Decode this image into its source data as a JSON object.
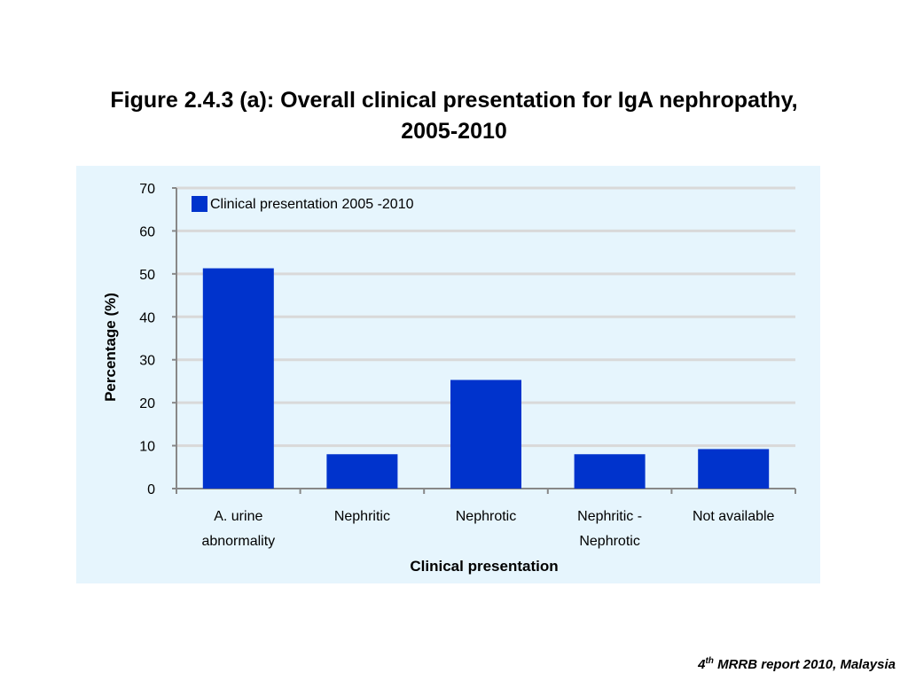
{
  "title": {
    "line1": "Figure 2.4.3 (a): Overall clinical presentation for IgA nephropathy,",
    "line2": "2005-2010"
  },
  "footer": {
    "num": "4",
    "sup": "th",
    "rest": " MRRB report 2010, Malaysia"
  },
  "colors": {
    "bar": "#0033cc",
    "panel": "#e6f5fd",
    "grid": "#d9d9d9"
  },
  "chart_data": {
    "type": "bar",
    "title": "Figure 2.4.3 (a): Overall clinical presentation for IgA nephropathy, 2005-2010",
    "xlabel": "Clinical presentation",
    "ylabel": "Percentage (%)",
    "ylim": [
      0,
      70
    ],
    "yticks": [
      "0",
      "10",
      "20",
      "30",
      "40",
      "50",
      "60",
      "70"
    ],
    "grid": true,
    "legend": "top-left",
    "categories": [
      [
        "A. urine",
        "abnormality"
      ],
      [
        "Nephritic"
      ],
      [
        "Nephrotic"
      ],
      [
        "Nephritic  -",
        "Nephrotic"
      ],
      [
        "Not available"
      ]
    ],
    "series": [
      {
        "name": "Clinical presentation 2005 -2010",
        "values": [
          51.3,
          8,
          25.3,
          8,
          9.2
        ]
      }
    ]
  }
}
